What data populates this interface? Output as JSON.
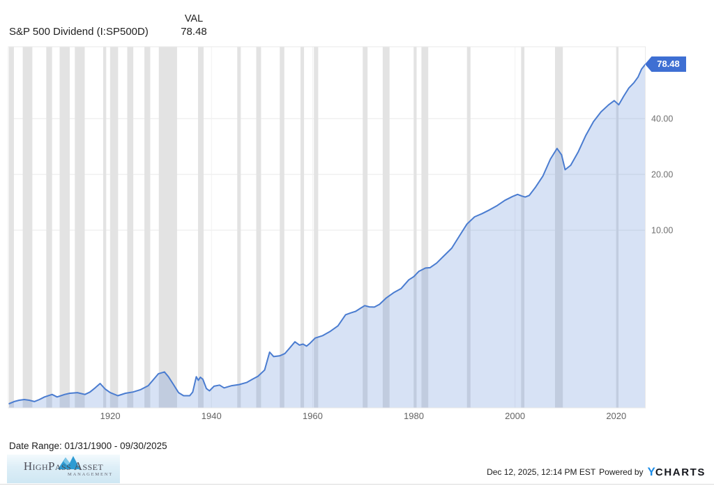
{
  "header": {
    "title": "S&P 500 Dividend (I:SP500D)",
    "val_label": "VAL",
    "val_value": "78.48"
  },
  "badge": {
    "value": "78.48"
  },
  "footer": {
    "date_range": "Date Range: 01/31/1900 - 09/30/2025",
    "timestamp": "Dec 12, 2025, 12:14 PM EST",
    "powered_by": "Powered by",
    "ycharts_y": "Y",
    "ycharts_rest": "CHARTS"
  },
  "logo": {
    "icon": "mountain-icon",
    "name_part1": "HighPass",
    "name_part2": "Asset",
    "subtitle": "Management"
  },
  "chart_data": {
    "type": "area",
    "title": "S&P 500 Dividend (I:SP500D)",
    "latest_value": 78.48,
    "ylog": true,
    "xlim": [
      1900,
      2025.75
    ],
    "ylim": [
      1.1,
      97.7
    ],
    "grid": true,
    "legend_position": "none",
    "yticks": [
      {
        "v": 40,
        "label": "40.00"
      },
      {
        "v": 20,
        "label": "20.00"
      },
      {
        "v": 10,
        "label": "10.00"
      }
    ],
    "xticks": [
      {
        "v": 1920,
        "label": "1920"
      },
      {
        "v": 1940,
        "label": "1940"
      },
      {
        "v": 1960,
        "label": "1960"
      },
      {
        "v": 1980,
        "label": "1980"
      },
      {
        "v": 2000,
        "label": "2000"
      },
      {
        "v": 2020,
        "label": "2020"
      }
    ],
    "series": [
      {
        "name": "S&P 500 Dividend",
        "x": [
          1900,
          1901,
          1902,
          1903,
          1904,
          1905,
          1906,
          1907,
          1908.5,
          1909.5,
          1911,
          1912,
          1913.5,
          1915,
          1916,
          1917,
          1918,
          1919,
          1920,
          1921.5,
          1923,
          1924.5,
          1926,
          1927.5,
          1928.5,
          1929.5,
          1930.7,
          1931.5,
          1932.5,
          1933.5,
          1934.5,
          1935.7,
          1936.3,
          1937.0,
          1937.4,
          1937.8,
          1938.3,
          1939.0,
          1939.6,
          1940.5,
          1941.6,
          1942.5,
          1944.0,
          1945.5,
          1947.0,
          1948.1,
          1949.2,
          1950.5,
          1951.5,
          1952.3,
          1953.5,
          1954.5,
          1955.5,
          1956.5,
          1957.4,
          1958.1,
          1958.8,
          1959.5,
          1960.5,
          1962,
          1963.5,
          1965,
          1966.5,
          1967.5,
          1968.5,
          1969.5,
          1970.3,
          1971.2,
          1972.2,
          1973.2,
          1974.5,
          1976,
          1977.5,
          1979,
          1980,
          1981,
          1982.3,
          1983.2,
          1984.5,
          1986,
          1987.5,
          1989,
          1990.5,
          1992,
          1993.5,
          1995,
          1996.5,
          1998,
          1999.5,
          2000.5,
          2001.3,
          2002,
          2002.8,
          2004,
          2005.5,
          2007,
          2008.3,
          2009.2,
          2009.9,
          2011,
          2012.5,
          2014,
          2015.5,
          2017,
          2018.5,
          2019.6,
          2020.5,
          2021.5,
          2022.5,
          2023.5,
          2024.3,
          2025,
          2025.75
        ],
        "values": [
          1.16,
          1.19,
          1.21,
          1.22,
          1.21,
          1.19,
          1.22,
          1.26,
          1.3,
          1.26,
          1.3,
          1.32,
          1.33,
          1.3,
          1.34,
          1.41,
          1.49,
          1.39,
          1.33,
          1.28,
          1.32,
          1.34,
          1.38,
          1.45,
          1.56,
          1.68,
          1.72,
          1.62,
          1.47,
          1.33,
          1.28,
          1.28,
          1.34,
          1.62,
          1.55,
          1.61,
          1.57,
          1.4,
          1.36,
          1.44,
          1.46,
          1.41,
          1.45,
          1.47,
          1.51,
          1.57,
          1.63,
          1.76,
          2.2,
          2.08,
          2.1,
          2.16,
          2.32,
          2.5,
          2.4,
          2.43,
          2.37,
          2.46,
          2.62,
          2.7,
          2.85,
          3.05,
          3.5,
          3.58,
          3.65,
          3.8,
          3.92,
          3.86,
          3.85,
          3.98,
          4.3,
          4.6,
          4.85,
          5.4,
          5.62,
          6.0,
          6.25,
          6.28,
          6.65,
          7.3,
          8.0,
          9.3,
          10.8,
          11.8,
          12.3,
          12.9,
          13.6,
          14.5,
          15.2,
          15.6,
          15.3,
          15.1,
          15.4,
          17.0,
          19.6,
          24.2,
          27.6,
          25.5,
          21.2,
          22.4,
          26.5,
          32.5,
          38.5,
          43.5,
          47.5,
          50.0,
          47.5,
          53.0,
          58.5,
          62.5,
          67.0,
          74.0,
          78.48
        ]
      }
    ],
    "recession_bands_x": [
      [
        1900.0,
        1900.96
      ],
      [
        1902.7,
        1904.6
      ],
      [
        1907.35,
        1908.5
      ],
      [
        1910.0,
        1912.0
      ],
      [
        1913.0,
        1914.95
      ],
      [
        1918.6,
        1919.2
      ],
      [
        1920.0,
        1921.55
      ],
      [
        1923.35,
        1924.55
      ],
      [
        1926.75,
        1927.9
      ],
      [
        1929.6,
        1933.2
      ],
      [
        1937.35,
        1938.45
      ],
      [
        1945.1,
        1945.8
      ],
      [
        1948.85,
        1949.8
      ],
      [
        1953.5,
        1954.4
      ],
      [
        1957.6,
        1958.3
      ],
      [
        1960.25,
        1961.1
      ],
      [
        1969.9,
        1970.85
      ],
      [
        1973.85,
        1975.2
      ],
      [
        1980.0,
        1980.55
      ],
      [
        1981.5,
        1982.85
      ],
      [
        1990.5,
        1991.2
      ],
      [
        2001.2,
        2001.85
      ],
      [
        2007.9,
        2009.45
      ],
      [
        2020.05,
        2020.45
      ]
    ],
    "colors": {
      "line": "#4a7cd0",
      "fill": "rgba(74,124,208,0.22)",
      "recession_band": "#e3e3e3",
      "grid_horizontal": "#e9e9e9",
      "grid_vertical": "#f1f1f1",
      "plot_border": "#e9e9e9",
      "badge": "#3e6fd3",
      "x_axis_text": "#636363",
      "y_axis_text": "#6f6f6f",
      "ycharts_blue": "#1b8ce8"
    }
  }
}
